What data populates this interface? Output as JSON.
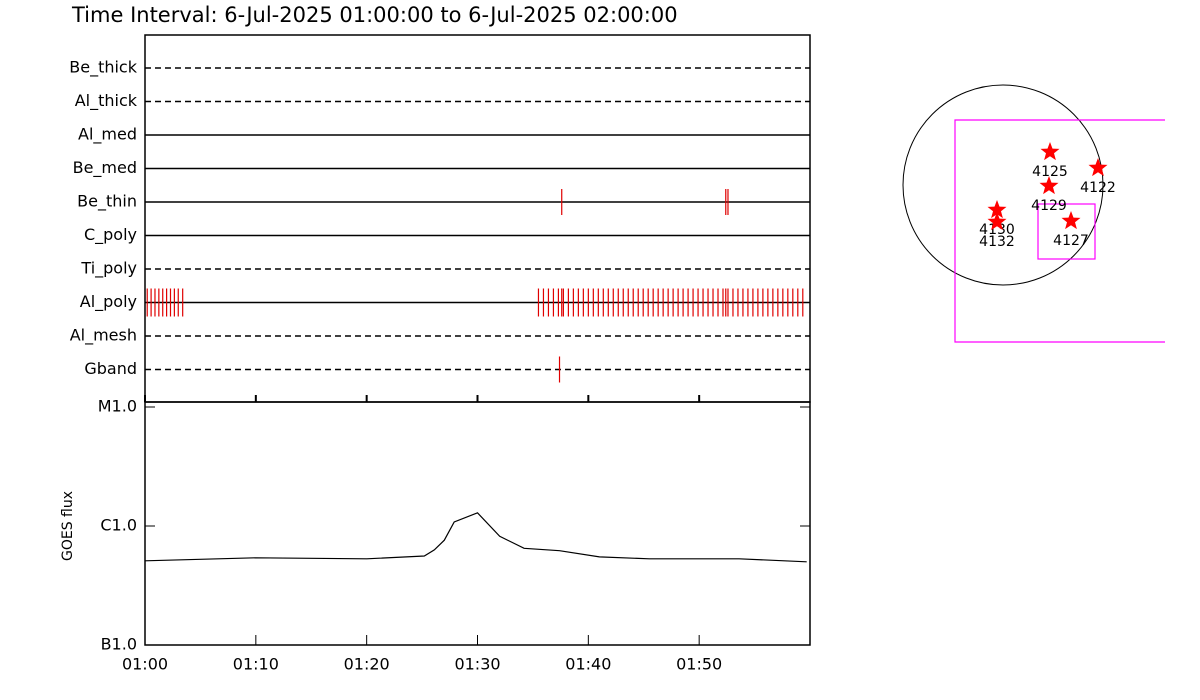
{
  "header": {
    "title": "Time Interval:  6-Jul-2025 01:00:00 to  6-Jul-2025 02:00:00"
  },
  "chart_data": [
    {
      "type": "timeline",
      "xlim": [
        0,
        60
      ],
      "event_color": "#e00000",
      "rows": [
        {
          "name": "Be_thick",
          "style": "dashed",
          "events": []
        },
        {
          "name": "Al_thick",
          "style": "dashed",
          "events": []
        },
        {
          "name": "Al_med",
          "style": "solid",
          "events": []
        },
        {
          "name": "Be_med",
          "style": "solid",
          "events": []
        },
        {
          "name": "Be_thin",
          "style": "solid",
          "events": [
            37.6,
            52.4,
            52.6
          ]
        },
        {
          "name": "C_poly",
          "style": "solid",
          "events": []
        },
        {
          "name": "Ti_poly",
          "style": "dashed",
          "events": []
        },
        {
          "name": "Al_poly",
          "style": "solid",
          "events": [
            0.2,
            0.55,
            0.9,
            1.25,
            1.6,
            1.95,
            2.3,
            2.65,
            3.0,
            3.4,
            35.5,
            35.95,
            36.4,
            36.85,
            37.3,
            37.6,
            37.75,
            38.2,
            38.65,
            39.1,
            39.55,
            40.0,
            40.45,
            40.9,
            41.35,
            41.8,
            42.25,
            42.7,
            43.15,
            43.6,
            44.05,
            44.5,
            44.95,
            45.4,
            45.85,
            46.3,
            46.75,
            47.2,
            47.65,
            48.1,
            48.55,
            49.0,
            49.45,
            49.9,
            50.35,
            50.8,
            51.25,
            51.7,
            52.15,
            52.4,
            52.6,
            53.05,
            53.5,
            53.95,
            54.4,
            54.85,
            55.3,
            55.75,
            56.2,
            56.65,
            57.1,
            57.55,
            58.0,
            58.45,
            58.9,
            59.35
          ]
        },
        {
          "name": "Al_mesh",
          "style": "dashed",
          "events": []
        },
        {
          "name": "Gband",
          "style": "dashed",
          "events": [
            37.4
          ]
        }
      ]
    },
    {
      "type": "line",
      "ylabel": "GOES flux",
      "color": "#000000",
      "log_scale": true,
      "x": [
        0,
        10,
        20,
        25.2,
        26.1,
        27.0,
        27.9,
        30,
        32,
        34.2,
        37.4,
        41,
        45.5,
        53.6,
        59.7
      ],
      "values": [
        5.1e-07,
        5.4e-07,
        5.3e-07,
        5.6e-07,
        6.3e-07,
        7.6e-07,
        1.08e-06,
        1.29e-06,
        8.2e-07,
        6.5e-07,
        6.2e-07,
        5.5e-07,
        5.3e-07,
        5.3e-07,
        5e-07
      ],
      "xlim": [
        0,
        60
      ],
      "xticks": [
        {
          "value": 0,
          "label": "01:00"
        },
        {
          "value": 10,
          "label": "01:10"
        },
        {
          "value": 20,
          "label": "01:20"
        },
        {
          "value": 30,
          "label": "01:30"
        },
        {
          "value": 40,
          "label": "01:40"
        },
        {
          "value": 50,
          "label": "01:50"
        }
      ],
      "ylim": [
        1e-07,
        1e-05
      ],
      "yticks": [
        {
          "value": 1e-07,
          "label": "B1.0"
        },
        {
          "value": 1e-06,
          "label": "C1.0"
        },
        {
          "value": 1e-05,
          "label": "M1.0"
        }
      ]
    }
  ],
  "map": {
    "marker_color": "#ff0000",
    "box_color": "#ff00ff",
    "regions": [
      {
        "label": "4125"
      },
      {
        "label": "4122"
      },
      {
        "label": "4129"
      },
      {
        "label": "4130"
      },
      {
        "label": "4132"
      },
      {
        "label": "4127"
      }
    ]
  }
}
